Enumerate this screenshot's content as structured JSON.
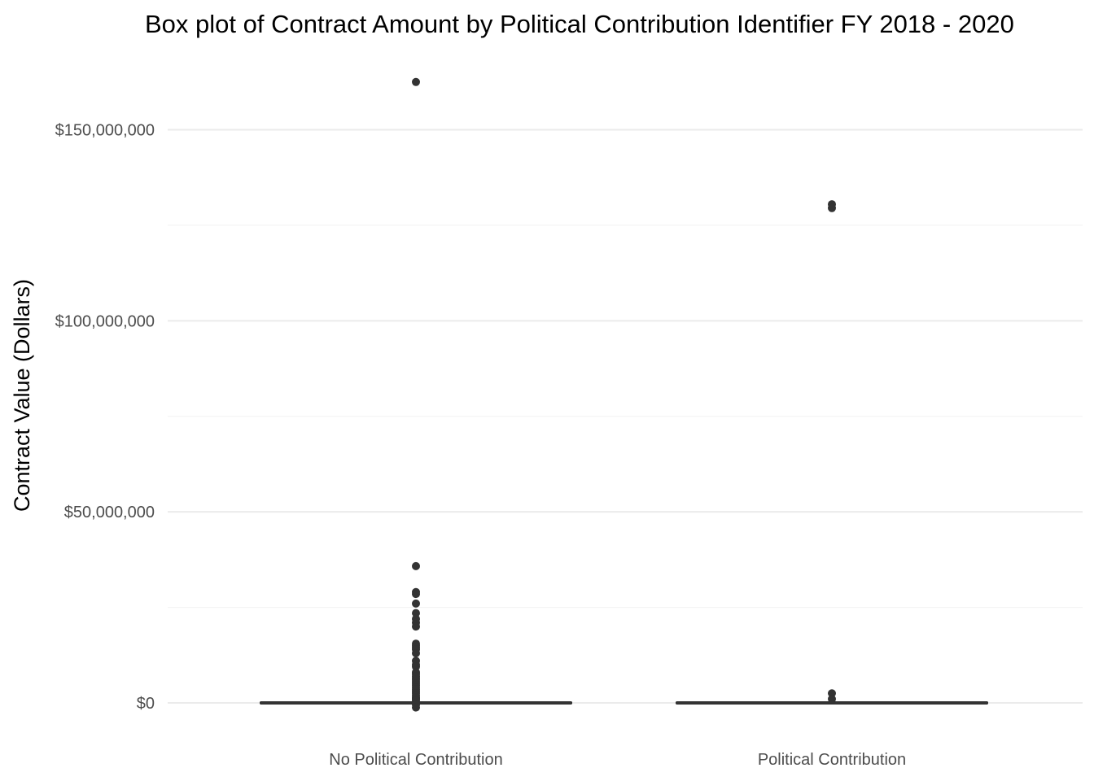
{
  "chart_data": {
    "type": "box",
    "title": "Box plot of Contract Amount by Political Contribution Identifier FY 2018 - 2020",
    "xlabel": "",
    "ylabel": "Contract Value (Dollars)",
    "ylim": [
      -5000000,
      168000000
    ],
    "yticks": [
      0,
      50000000,
      100000000,
      150000000
    ],
    "ytick_labels": [
      "$0",
      "$50,000,000",
      "$100,000,000",
      "$150,000,000"
    ],
    "minor_gridlines": [
      25000000,
      75000000,
      125000000
    ],
    "grid": true,
    "legend": "none",
    "categories": [
      "No Political Contribution",
      "Political Contribution"
    ],
    "box_color": "#333333",
    "boxes": [
      {
        "category": "No Political Contribution",
        "q1": 0,
        "median": 0,
        "q3": 0,
        "whisker_low": 0,
        "whisker_high": 0,
        "outliers": [
          162500000,
          35800000,
          29000000,
          28500000,
          26000000,
          23500000,
          22000000,
          21000000,
          20000000,
          15500000,
          15000000,
          14500000,
          14000000,
          13000000,
          11000000,
          10000000,
          9500000,
          8000000,
          7500000,
          7000000,
          6500000,
          6000000,
          5500000,
          5000000,
          4500000,
          4000000,
          3500000,
          3000000,
          2500000,
          2000000,
          1500000,
          1200000,
          900000,
          600000,
          -500000,
          -1200000
        ]
      },
      {
        "category": "Political Contribution",
        "q1": 0,
        "median": 0,
        "q3": 0,
        "whisker_low": 0,
        "whisker_high": 0,
        "outliers": [
          130500000,
          129500000,
          2500000,
          1000000
        ]
      }
    ]
  }
}
